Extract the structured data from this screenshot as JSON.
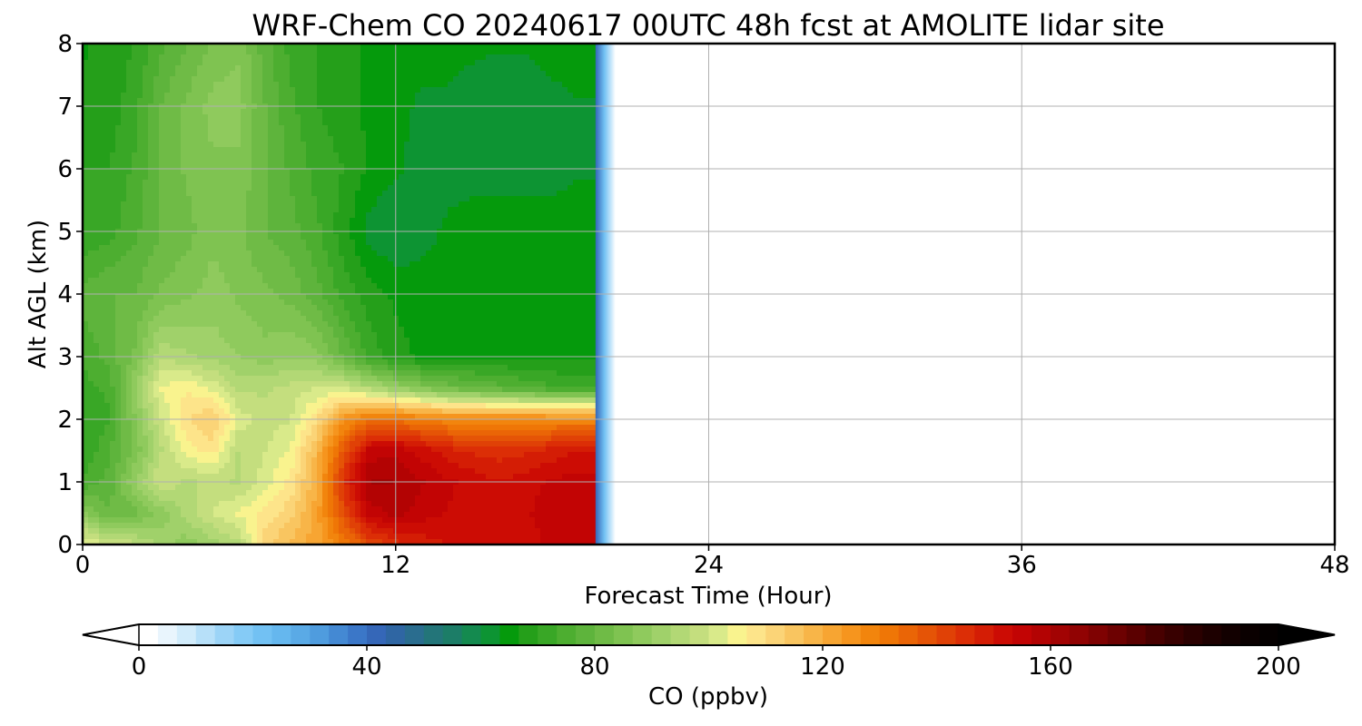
{
  "chart_data": {
    "type": "heatmap",
    "title": "WRF-Chem CO  20240617 00UTC 48h fcst at AMOLITE lidar site",
    "xlabel": "Forecast Time (Hour)",
    "ylabel": "Alt AGL (km)",
    "xlim": [
      0,
      48
    ],
    "ylim": [
      0,
      8
    ],
    "xticks": [
      0,
      12,
      24,
      36,
      48
    ],
    "yticks": [
      0,
      1,
      2,
      3,
      4,
      5,
      6,
      7,
      8
    ],
    "grid": true,
    "forecast_valid_until_hour": 19.8,
    "x_hours": [
      0,
      1,
      2,
      3,
      4,
      5,
      6,
      7,
      8,
      9,
      10,
      11,
      12,
      13,
      14,
      15,
      16,
      17,
      18,
      19
    ],
    "y_km": [
      0,
      0.5,
      1,
      1.5,
      2,
      2.5,
      3,
      4,
      5,
      6,
      7,
      8
    ],
    "values_ppbv": [
      [
        105,
        100,
        98,
        92,
        88,
        92,
        96,
        112,
        118,
        122,
        130,
        140,
        145,
        148,
        150,
        152,
        152,
        152,
        154,
        156
      ],
      [
        88,
        80,
        82,
        88,
        95,
        100,
        104,
        108,
        112,
        122,
        140,
        155,
        158,
        155,
        153,
        152,
        152,
        153,
        155,
        156
      ],
      [
        74,
        78,
        90,
        100,
        96,
        98,
        96,
        102,
        108,
        120,
        145,
        160,
        160,
        157,
        154,
        152,
        150,
        152,
        154,
        155
      ],
      [
        70,
        76,
        84,
        96,
        105,
        108,
        96,
        100,
        104,
        118,
        138,
        155,
        156,
        152,
        148,
        146,
        145,
        146,
        148,
        150
      ],
      [
        70,
        73,
        86,
        100,
        110,
        114,
        102,
        98,
        100,
        110,
        125,
        132,
        132,
        130,
        128,
        128,
        128,
        128,
        128,
        128
      ],
      [
        72,
        74,
        90,
        104,
        106,
        102,
        96,
        96,
        98,
        100,
        100,
        95,
        90,
        86,
        82,
        80,
        78,
        76,
        74,
        72
      ],
      [
        74,
        78,
        84,
        96,
        94,
        92,
        90,
        88,
        90,
        88,
        80,
        72,
        68,
        66,
        66,
        66,
        66,
        66,
        66,
        66
      ],
      [
        78,
        80,
        80,
        84,
        86,
        88,
        86,
        84,
        82,
        78,
        72,
        68,
        66,
        65,
        65,
        65,
        65,
        65,
        65,
        65
      ],
      [
        70,
        72,
        76,
        80,
        82,
        86,
        84,
        80,
        78,
        74,
        68,
        62,
        60,
        62,
        64,
        65,
        65,
        65,
        65,
        65
      ],
      [
        70,
        70,
        74,
        80,
        84,
        86,
        86,
        80,
        76,
        72,
        70,
        66,
        64,
        62,
        62,
        62,
        62,
        62,
        62,
        63
      ],
      [
        68,
        68,
        72,
        80,
        84,
        88,
        88,
        80,
        74,
        70,
        68,
        66,
        64,
        63,
        63,
        62,
        60,
        60,
        62,
        63
      ],
      [
        66,
        68,
        70,
        76,
        80,
        84,
        86,
        78,
        72,
        70,
        68,
        66,
        65,
        64,
        64,
        64,
        64,
        64,
        65,
        66
      ]
    ],
    "colorbar": {
      "label": "CO  (ppbv)",
      "min": 0,
      "max": 200,
      "ticks": [
        0,
        40,
        80,
        120,
        160,
        200
      ],
      "extend": "both",
      "colors": [
        "#ffffff",
        "#e9f5fd",
        "#d2ecfb",
        "#b7e0f9",
        "#9cd4f7",
        "#85cbf6",
        "#72c1f3",
        "#65b7ee",
        "#5aaae6",
        "#4f9cde",
        "#4489d3",
        "#3b77c8",
        "#3567b8",
        "#2f66a3",
        "#2a6d8f",
        "#237579",
        "#1c7d67",
        "#148a4f",
        "#0d9433",
        "#059a0c",
        "#259f1a",
        "#39a726",
        "#4dae30",
        "#5eb43c",
        "#6fbb46",
        "#7fc351",
        "#8fca5d",
        "#a0d16a",
        "#b2d875",
        "#c4de7e",
        "#d9ea8a",
        "#f9f38e",
        "#fde48a",
        "#fbd477",
        "#f9c560",
        "#f8b548",
        "#f7a532",
        "#f6951e",
        "#f2850d",
        "#ef7606",
        "#ea6506",
        "#e55406",
        "#e04106",
        "#dc2e06",
        "#d41d05",
        "#cc0c04",
        "#c20404",
        "#b30303",
        "#a20303",
        "#910303",
        "#7f0202",
        "#6d0101",
        "#5b0000",
        "#480000",
        "#380000",
        "#2a0000",
        "#1d0000",
        "#120000",
        "#0a0000",
        "#050000"
      ]
    }
  }
}
